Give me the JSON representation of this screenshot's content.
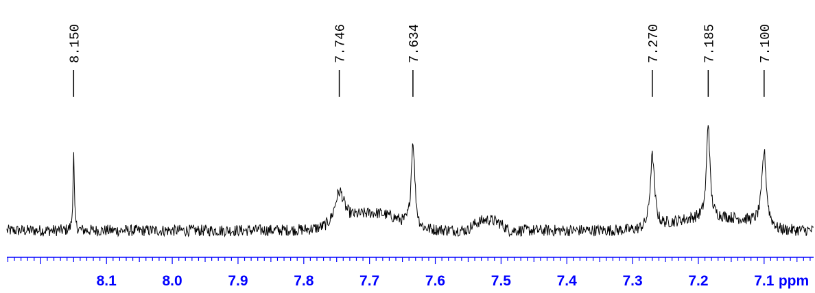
{
  "chart_data": {
    "type": "line",
    "title": "",
    "xlabel": "ppm",
    "ylabel": "",
    "x_axis": {
      "reversed": true,
      "range": [
        8.2515,
        7.0247
      ],
      "tick_labels": [
        "8.1",
        "8.0",
        "7.9",
        "7.8",
        "7.7",
        "7.6",
        "7.5",
        "7.4",
        "7.3",
        "7.2",
        "7.1"
      ],
      "tick_values": [
        8.1,
        8.0,
        7.9,
        7.8,
        7.7,
        7.6,
        7.5,
        7.4,
        7.3,
        7.2,
        7.1
      ],
      "minor_tick_step": 0.01,
      "unit": "ppm"
    },
    "peak_labels": [
      "8.150",
      "7.746",
      "7.634",
      "7.270",
      "7.185",
      "7.100"
    ],
    "peak_positions": [
      8.15,
      7.746,
      7.634,
      7.27,
      7.185,
      7.1
    ],
    "peaks": [
      {
        "ppm": 8.15,
        "height": 0.66,
        "width": 0.0012
      },
      {
        "ppm": 7.746,
        "height": 0.33,
        "width": 0.009
      },
      {
        "ppm": 7.634,
        "height": 0.76,
        "width": 0.0035
      },
      {
        "ppm": 7.27,
        "height": 0.64,
        "width": 0.004
      },
      {
        "ppm": 7.185,
        "height": 0.82,
        "width": 0.003
      },
      {
        "ppm": 7.1,
        "height": 0.63,
        "width": 0.004
      }
    ],
    "humps": [
      {
        "from": 7.745,
        "to": 7.64,
        "level": 0.14
      },
      {
        "from": 7.55,
        "to": 7.49,
        "level": 0.09
      },
      {
        "from": 7.27,
        "to": 7.08,
        "level": 0.11
      }
    ],
    "baseline_noise": 0.05,
    "grid": false,
    "legend": "none"
  }
}
